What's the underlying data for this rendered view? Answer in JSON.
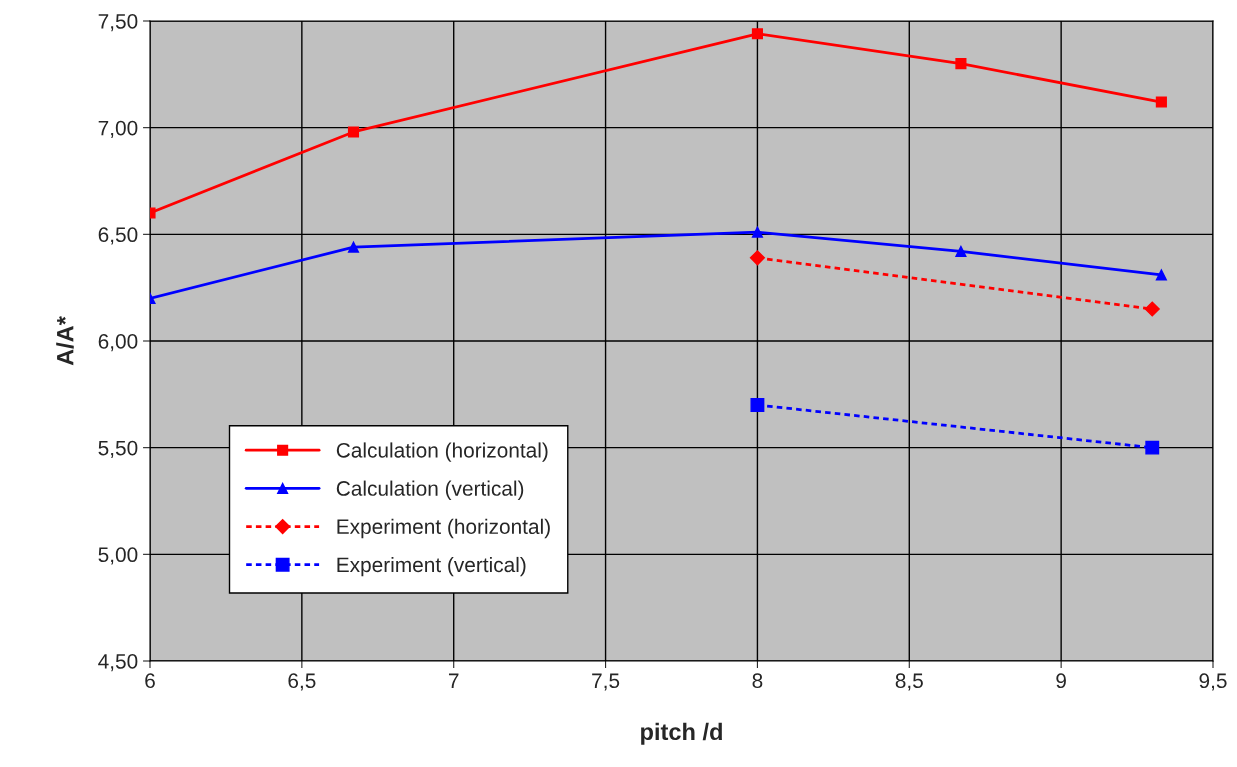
{
  "chart_data": {
    "type": "line",
    "xlabel": "pitch /d",
    "ylabel": "A/A*",
    "xlim": [
      6,
      9.5
    ],
    "ylim": [
      4.5,
      7.5
    ],
    "xticks": [
      6,
      {
        "value": 6.5,
        "label": "6,5"
      },
      7,
      {
        "value": 7.5,
        "label": "7,5"
      },
      8,
      {
        "value": 8.5,
        "label": "8,5"
      },
      9,
      {
        "value": 9.5,
        "label": "9,5"
      }
    ],
    "yticks": [
      {
        "value": 4.5,
        "label": "4,50"
      },
      {
        "value": 5.0,
        "label": "5,00"
      },
      {
        "value": 5.5,
        "label": "5,50"
      },
      {
        "value": 6.0,
        "label": "6,00"
      },
      {
        "value": 6.5,
        "label": "6,50"
      },
      {
        "value": 7.0,
        "label": "7,00"
      },
      {
        "value": 7.5,
        "label": "7,50"
      }
    ],
    "grid": true,
    "legend": "lower left",
    "series": [
      {
        "name": "Calculation (horizontal)",
        "color": "#ff0000",
        "marker": "square",
        "line_style": "solid",
        "x": [
          6,
          6.67,
          8,
          8.67,
          9.33
        ],
        "values": [
          6.6,
          6.98,
          7.44,
          7.3,
          7.12
        ]
      },
      {
        "name": "Calculation (vertical)",
        "color": "#0000ff",
        "marker": "triangle",
        "line_style": "solid",
        "x": [
          6,
          6.67,
          8,
          8.67,
          9.33
        ],
        "values": [
          6.2,
          6.44,
          6.51,
          6.42,
          6.31
        ]
      },
      {
        "name": "Experiment (horizontal)",
        "color": "#ff0000",
        "marker": "diamond",
        "line_style": "dotted",
        "x": [
          8,
          9.3
        ],
        "values": [
          6.39,
          6.15
        ]
      },
      {
        "name": "Experiment (vertical)",
        "color": "#0000ff",
        "marker": "square",
        "line_style": "dotted",
        "x": [
          8,
          9.3
        ],
        "values": [
          5.7,
          5.5
        ]
      }
    ]
  }
}
